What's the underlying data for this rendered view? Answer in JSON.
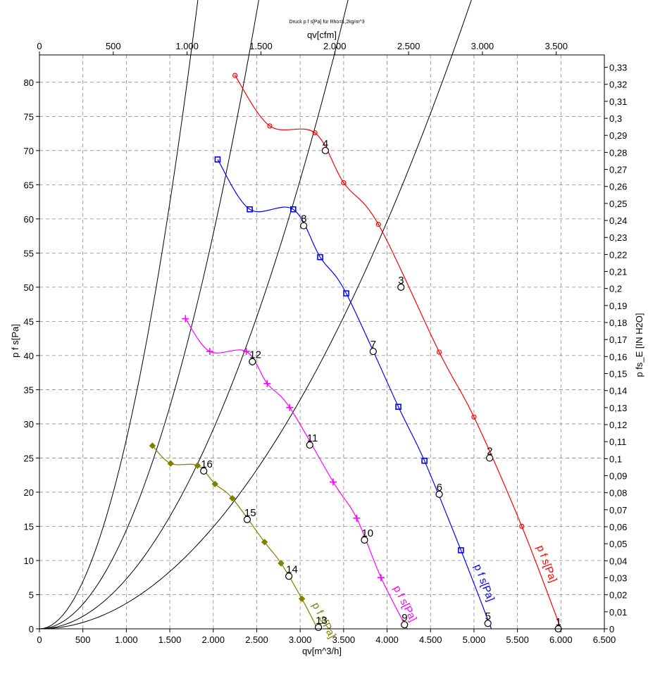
{
  "chart_data": {
    "type": "line",
    "title": "Druck p f s[Pa] für Rho=1,2kg/m^3",
    "xlabel": "qv[m^3/h]",
    "ylabel": "p f s[Pa]",
    "x2label": "qv[cfm]",
    "y2label": "p fs_E [IN H2O]",
    "xlim": [
      0,
      6500
    ],
    "ylim": [
      0,
      84
    ],
    "x2lim": [
      0,
      3825.7
    ],
    "y2lim": [
      0,
      0.33727
    ],
    "grid": true,
    "x_ticks": [
      "0",
      "500",
      "1.000",
      "1.500",
      "2.000",
      "2.500",
      "3.000",
      "3.500",
      "4.000",
      "4.500",
      "5.000",
      "5.500",
      "6.000",
      "6.500"
    ],
    "y_ticks": [
      "0",
      "5",
      "10",
      "15",
      "20",
      "25",
      "30",
      "35",
      "40",
      "45",
      "50",
      "55",
      "60",
      "65",
      "70",
      "75",
      "80"
    ],
    "x2_ticks": [
      "0",
      "500",
      "1.000",
      "1.500",
      "2.000",
      "2.500",
      "3.000",
      "3.500"
    ],
    "y2_ticks": [
      "0",
      "0,01",
      "0,02",
      "0,03",
      "0,04",
      "0,05",
      "0,06",
      "0,07",
      "0,08",
      "0,09",
      "0,1",
      "0,11",
      "0,12",
      "0,13",
      "0,14",
      "0,15",
      "0,16",
      "0,17",
      "0,18",
      "0,19",
      "0,2",
      "0,21",
      "0,22",
      "0,23",
      "0,24",
      "0,25",
      "0,26",
      "0,27",
      "0,28",
      "0,29",
      "0,3",
      "0,31",
      "0,32",
      "0,33"
    ],
    "series": [
      {
        "name": "p f s[Pa]",
        "color": "#ff0000",
        "marker": "circle",
        "points": [
          [
            2250,
            81
          ],
          [
            2650,
            73.6
          ],
          [
            3170,
            72.6
          ],
          [
            3500,
            65.3
          ],
          [
            3900,
            59.2
          ],
          [
            4600,
            40.5
          ],
          [
            5000,
            31
          ],
          [
            5550,
            15
          ],
          [
            6000,
            0
          ]
        ]
      },
      {
        "name": "p f s[Pa]",
        "color": "#0000ff",
        "marker": "square",
        "points": [
          [
            2050,
            68.7
          ],
          [
            2420,
            61.4
          ],
          [
            2920,
            61.4
          ],
          [
            3230,
            54.4
          ],
          [
            3530,
            49.1
          ],
          [
            4130,
            32.5
          ],
          [
            4430,
            24.6
          ],
          [
            4850,
            11.5
          ],
          [
            5200,
            0
          ]
        ]
      },
      {
        "name": "p f s[Pa]",
        "color": "#ff00ff",
        "marker": "plus",
        "points": [
          [
            1680,
            45.4
          ],
          [
            1960,
            40.6
          ],
          [
            2380,
            40.6
          ],
          [
            2620,
            35.9
          ],
          [
            2880,
            32.4
          ],
          [
            3380,
            21.5
          ],
          [
            3650,
            16.2
          ],
          [
            3930,
            7.5
          ],
          [
            4230,
            0
          ]
        ]
      },
      {
        "name": "p f s[Pa]",
        "color": "#808000",
        "marker": "diamond",
        "points": [
          [
            1300,
            26.8
          ],
          [
            1510,
            24.2
          ],
          [
            1820,
            23.9
          ],
          [
            2020,
            21.2
          ],
          [
            2220,
            19.1
          ],
          [
            2590,
            12.7
          ],
          [
            2780,
            9.6
          ],
          [
            3020,
            4.4
          ],
          [
            3200,
            0
          ]
        ]
      }
    ],
    "system_curves": [
      {
        "k": 3.726e-06,
        "x_max": 6120
      },
      {
        "k": 7.3e-06,
        "x_max": 5420
      },
      {
        "k": 1.445e-05,
        "x_max": 3860
      },
      {
        "k": 2.77e-05,
        "x_max": 3550
      }
    ],
    "operating_points": [
      {
        "label": "1",
        "x": 5970,
        "y": 0
      },
      {
        "label": "2",
        "x": 5180,
        "y": 25
      },
      {
        "label": "3",
        "x": 4160,
        "y": 50
      },
      {
        "label": "4",
        "x": 3290,
        "y": 70
      },
      {
        "label": "5",
        "x": 5160,
        "y": 0.8
      },
      {
        "label": "6",
        "x": 4600,
        "y": 19.7
      },
      {
        "label": "7",
        "x": 3840,
        "y": 40.6
      },
      {
        "label": "8",
        "x": 3040,
        "y": 59
      },
      {
        "label": "9",
        "x": 4200,
        "y": 0.6
      },
      {
        "label": "10",
        "x": 3740,
        "y": 13
      },
      {
        "label": "11",
        "x": 3110,
        "y": 26.9
      },
      {
        "label": "12",
        "x": 2450,
        "y": 39.1
      },
      {
        "label": "13",
        "x": 3210,
        "y": 0.2
      },
      {
        "label": "14",
        "x": 2870,
        "y": 7.7
      },
      {
        "label": "15",
        "x": 2390,
        "y": 16
      },
      {
        "label": "16",
        "x": 1890,
        "y": 23.1
      }
    ]
  }
}
